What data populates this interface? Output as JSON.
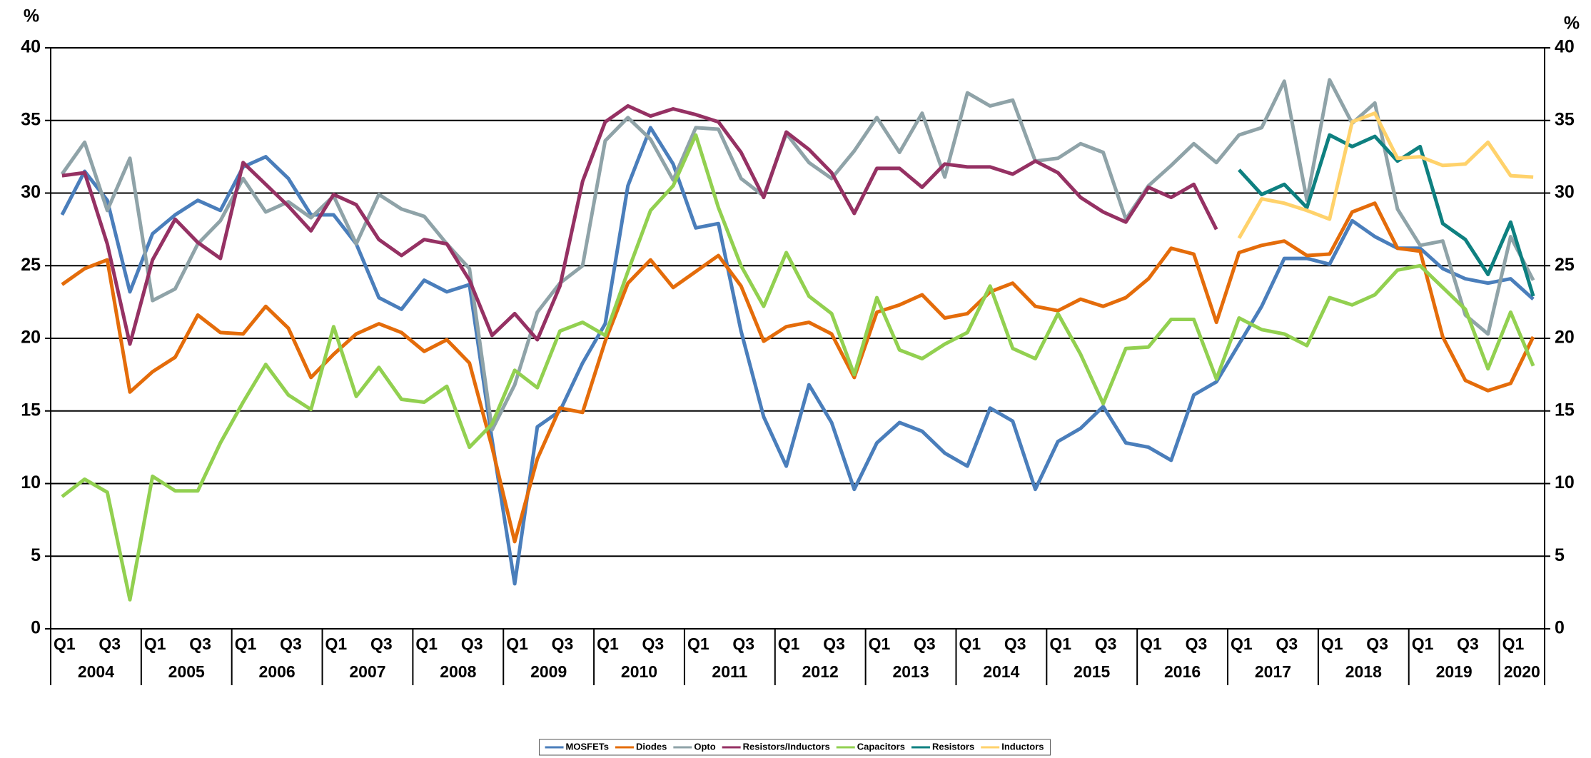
{
  "chart_data": {
    "type": "line",
    "y_label": "%",
    "y2_label": "%",
    "categories": [
      "Q1",
      null,
      "Q3",
      null,
      "Q1",
      null,
      "Q3",
      null,
      "Q1",
      null,
      "Q3",
      null,
      "Q1",
      null,
      "Q3",
      null,
      "Q1",
      null,
      "Q3",
      null,
      "Q1",
      null,
      "Q3",
      null,
      "Q1",
      null,
      "Q3",
      null,
      "Q1",
      null,
      "Q3",
      null,
      "Q1",
      null,
      "Q3",
      null,
      "Q1",
      null,
      "Q3",
      null,
      "Q1",
      null,
      "Q3",
      null,
      "Q1",
      null,
      "Q3",
      null,
      "Q1",
      null,
      "Q3",
      null,
      "Q1",
      null,
      "Q3",
      null,
      "Q1",
      null,
      "Q3",
      null,
      "Q1",
      null,
      "Q3",
      null,
      "Q1",
      null
    ],
    "years": [
      "2004",
      "2005",
      "2006",
      "2007",
      "2008",
      "2009",
      "2010",
      "2011",
      "2012",
      "2013",
      "2014",
      "2015",
      "2016",
      "2017",
      "2018",
      "2019",
      "2020"
    ],
    "ylim": [
      0,
      40
    ],
    "yticks": [
      0,
      5,
      10,
      15,
      20,
      25,
      30,
      35,
      40
    ],
    "y2lim": [
      0,
      40
    ],
    "y2ticks": [
      0,
      5,
      10,
      15,
      20,
      25,
      30,
      35,
      40
    ],
    "grid": true,
    "legend": "bottom",
    "series": [
      {
        "name": "MOSFETs",
        "color": "#4a7ebb",
        "values": [
          28.5,
          31.5,
          29.5,
          23.2,
          27.2,
          28.5,
          29.5,
          28.8,
          31.8,
          32.5,
          31,
          28.5,
          28.5,
          26.5,
          22.8,
          22,
          24,
          23.2,
          23.7,
          13,
          3.1,
          13.9,
          15,
          18.3,
          21,
          30.5,
          34.5,
          32,
          27.6,
          27.9,
          20.5,
          14.6,
          11.2,
          16.8,
          14.2,
          9.6,
          12.8,
          14.2,
          13.6,
          12.1,
          11.2,
          15.2,
          14.3,
          9.6,
          12.9,
          13.8,
          15.3,
          12.8,
          12.5,
          11.6,
          16.1,
          17,
          19.6,
          22.2,
          25.5,
          25.5,
          25.1,
          28.1,
          27,
          26.2,
          26.2,
          24.8,
          24.1,
          23.8,
          24.1,
          22.7
        ]
      },
      {
        "name": "Diodes",
        "color": "#e46c0a",
        "values": [
          23.7,
          24.8,
          25.4,
          16.3,
          17.7,
          18.7,
          21.6,
          20.4,
          20.3,
          22.2,
          20.7,
          17.3,
          18.9,
          20.3,
          21,
          20.4,
          19.1,
          19.9,
          18.3,
          12.5,
          6,
          11.7,
          15.2,
          14.9,
          19.8,
          23.8,
          25.4,
          23.5,
          24.6,
          25.7,
          23.6,
          19.8,
          20.8,
          21.1,
          20.3,
          17.3,
          21.8,
          22.3,
          23,
          21.4,
          21.7,
          23.2,
          23.8,
          22.2,
          21.9,
          22.7,
          22.2,
          22.8,
          24.1,
          26.2,
          25.8,
          21.1,
          25.9,
          26.4,
          26.7,
          25.7,
          25.8,
          28.7,
          29.3,
          26.2,
          26,
          20.1,
          17.1,
          16.4,
          16.9,
          20.1
        ]
      },
      {
        "name": "Opto",
        "color": "#8fa3a8",
        "values": [
          31.3,
          33.5,
          28.8,
          32.4,
          22.6,
          23.4,
          26.5,
          28.1,
          31,
          28.7,
          29.4,
          28.3,
          29.8,
          26.5,
          29.9,
          28.9,
          28.4,
          26.5,
          24.8,
          13.7,
          16.8,
          21.8,
          23.8,
          25,
          33.6,
          35.2,
          33.7,
          30.9,
          34.5,
          34.4,
          31,
          29.8,
          34.1,
          32.1,
          31,
          32.9,
          35.2,
          32.8,
          35.5,
          31.1,
          36.9,
          36,
          36.4,
          32.2,
          32.4,
          33.4,
          32.8,
          28.2,
          30.5,
          31.9,
          33.4,
          32.1,
          34,
          34.5,
          37.7,
          29.5,
          37.8,
          34.8,
          36.2,
          28.9,
          26.4,
          26.7,
          21.6,
          20.3,
          27,
          24
        ]
      },
      {
        "name": "Resistors/Inductors",
        "color": "#953163",
        "values": [
          31.2,
          31.4,
          26.5,
          19.6,
          25.4,
          28.2,
          26.6,
          25.5,
          32.1,
          30.6,
          29.1,
          27.4,
          29.9,
          29.2,
          26.8,
          25.7,
          26.8,
          26.5,
          24,
          20.2,
          21.7,
          19.9,
          23.6,
          30.8,
          34.9,
          36,
          35.3,
          35.8,
          35.4,
          34.9,
          32.8,
          29.7,
          34.2,
          33,
          31.4,
          28.6,
          31.7,
          31.7,
          30.4,
          32,
          31.8,
          31.8,
          31.3,
          32.2,
          31.4,
          29.7,
          28.7,
          28,
          30.4,
          29.7,
          30.6,
          27.5,
          null,
          null,
          null,
          null,
          null,
          null,
          null,
          null,
          null,
          null,
          null,
          null,
          null,
          null
        ]
      },
      {
        "name": "Capacitors",
        "color": "#92d050",
        "values": [
          9.1,
          10.3,
          9.4,
          2,
          10.5,
          9.5,
          9.5,
          12.8,
          15.6,
          18.2,
          16.1,
          15.1,
          20.8,
          16,
          18,
          15.8,
          15.6,
          16.7,
          12.5,
          14.1,
          17.8,
          16.6,
          20.5,
          21.1,
          20.2,
          24.6,
          28.8,
          30.5,
          34,
          29,
          25,
          22.2,
          25.9,
          22.9,
          21.7,
          17.5,
          22.8,
          19.2,
          18.6,
          19.6,
          20.4,
          23.6,
          19.3,
          18.6,
          21.7,
          18.9,
          15.5,
          19.3,
          19.4,
          21.3,
          21.3,
          17.2,
          21.4,
          20.6,
          20.3,
          19.5,
          22.8,
          22.3,
          23,
          24.7,
          25,
          23.5,
          22,
          17.9,
          21.8,
          18.1
        ]
      },
      {
        "name": "Resistors",
        "color": "#0e8080",
        "values": [
          null,
          null,
          null,
          null,
          null,
          null,
          null,
          null,
          null,
          null,
          null,
          null,
          null,
          null,
          null,
          null,
          null,
          null,
          null,
          null,
          null,
          null,
          null,
          null,
          null,
          null,
          null,
          null,
          null,
          null,
          null,
          null,
          null,
          null,
          null,
          null,
          null,
          null,
          null,
          null,
          null,
          null,
          null,
          null,
          null,
          null,
          null,
          null,
          null,
          null,
          null,
          null,
          31.6,
          29.9,
          30.6,
          29,
          34,
          33.2,
          33.9,
          32.2,
          33.2,
          27.9,
          26.8,
          24.4,
          28,
          22.9
        ]
      },
      {
        "name": "Inductors",
        "color": "#ffd26b",
        "values": [
          null,
          null,
          null,
          null,
          null,
          null,
          null,
          null,
          null,
          null,
          null,
          null,
          null,
          null,
          null,
          null,
          null,
          null,
          null,
          null,
          null,
          null,
          null,
          null,
          null,
          null,
          null,
          null,
          null,
          null,
          null,
          null,
          null,
          null,
          null,
          null,
          null,
          null,
          null,
          null,
          null,
          null,
          null,
          null,
          null,
          null,
          null,
          null,
          null,
          null,
          null,
          null,
          26.9,
          29.6,
          29.3,
          28.8,
          28.2,
          34.9,
          35.5,
          32.4,
          32.5,
          31.9,
          32,
          33.5,
          31.2,
          31.1
        ]
      }
    ]
  }
}
